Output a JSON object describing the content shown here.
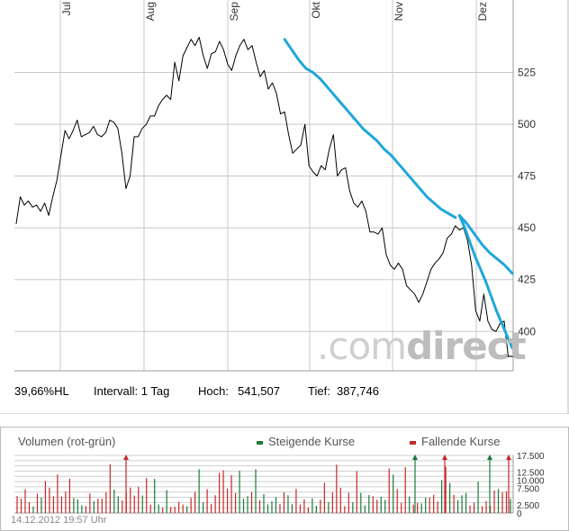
{
  "chart_data": [
    {
      "type": "line",
      "x_tick_labels": [
        "Jul",
        "Aug",
        "Sep",
        "Okt",
        "Nov",
        "Dez"
      ],
      "y_ticks": [
        400,
        425,
        450,
        475,
        500,
        525
      ],
      "ylim": [
        381,
        560
      ],
      "grid": true,
      "series": [
        {
          "values": [
            452,
            465,
            461,
            463,
            460,
            461,
            458,
            462,
            456,
            465,
            473,
            485,
            497,
            493,
            497,
            502,
            494,
            495,
            496,
            499,
            495,
            494,
            496,
            502,
            501,
            498,
            486,
            469,
            475,
            494,
            494,
            498,
            500,
            504,
            504,
            509,
            512,
            514,
            512,
            530,
            521,
            533,
            537,
            541,
            538,
            542,
            533,
            527,
            534,
            535,
            540,
            536,
            529,
            526,
            533,
            538,
            541,
            536,
            538,
            530,
            523,
            526,
            517,
            520,
            515,
            505,
            506,
            495,
            486,
            488,
            490,
            500,
            480,
            477,
            475,
            480,
            478,
            488,
            495,
            475,
            478,
            479,
            468,
            462,
            460,
            463,
            458,
            448,
            448,
            447,
            450,
            437,
            432,
            430,
            433,
            430,
            422,
            420,
            418,
            414,
            418,
            424,
            430,
            433,
            435,
            438,
            445,
            447,
            451,
            449,
            450,
            444,
            432,
            410,
            405,
            418,
            405,
            401,
            400,
            404,
            405,
            388,
            388
          ],
          "color": "#000000"
        },
        {
          "values": [
            541,
            536,
            531,
            527,
            525,
            522,
            518,
            514,
            510,
            506,
            502,
            498,
            495,
            492,
            488,
            485,
            481,
            477,
            473,
            469,
            465,
            462,
            459,
            457,
            455
          ],
          "start_index": 66,
          "color": "#1fa7dc"
        },
        {
          "values": [
            456,
            450,
            443,
            436,
            430,
            424,
            417,
            410,
            404,
            398,
            392
          ],
          "start_index": 109,
          "color": "#1fa7dc"
        },
        {
          "values": [
            456,
            452,
            447,
            442,
            438,
            435,
            432,
            428
          ],
          "start_index": 109,
          "color": "#1fa7dc"
        }
      ]
    },
    {
      "type": "bar",
      "title": "Volumen (rot-grün)",
      "y_ticks": [
        0,
        2500,
        7500,
        10000,
        12500,
        17500
      ],
      "y_tick_labels": [
        "0",
        "2.500",
        "7.500",
        "10.000",
        "12.500",
        "17.500"
      ],
      "ylim": [
        0,
        17500
      ],
      "legend": [
        {
          "label": "Steigende Kurse",
          "color": "#1a7a3a"
        },
        {
          "label": "Fallende Kurse",
          "color": "#c62828"
        }
      ],
      "up_color": "#1a7a3a",
      "down_color": "#c62828"
    }
  ],
  "stats": {
    "range": "39,66%HL",
    "interval": "Intervall: 1 Tag",
    "high_label": "Hoch:",
    "high_value": "541,507",
    "low_label": "Tief:",
    "low_value": "387,746"
  },
  "watermark": {
    "part1": ".com",
    "part2": "direct"
  },
  "timestamp": "14.12.2012 19:57 Uhr"
}
